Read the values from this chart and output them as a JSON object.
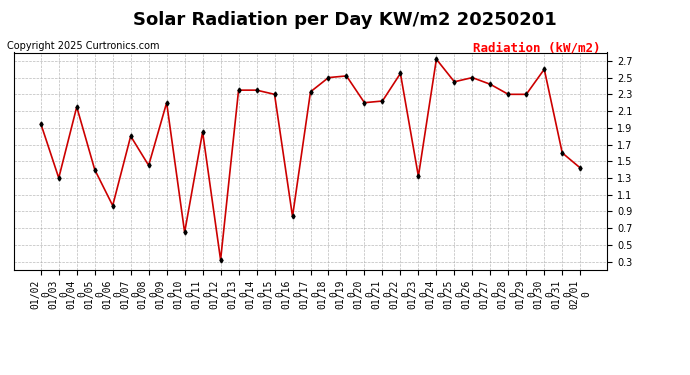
{
  "title": "Solar Radiation per Day KW/m2 20250201",
  "copyright": "Copyright 2025 Curtronics.com",
  "legend_label": "Radiation (kW/m2)",
  "dates": [
    "01/02",
    "01/03",
    "01/04",
    "01/05",
    "01/06",
    "01/07",
    "01/08",
    "01/09",
    "01/10",
    "01/11",
    "01/12",
    "01/13",
    "01/14",
    "01/15",
    "01/16",
    "01/17",
    "01/18",
    "01/19",
    "01/20",
    "01/21",
    "01/22",
    "01/23",
    "01/24",
    "01/25",
    "01/26",
    "01/27",
    "01/28",
    "01/29",
    "01/30",
    "01/31",
    "02/01"
  ],
  "values": [
    1.95,
    1.3,
    2.15,
    1.4,
    0.97,
    1.8,
    1.45,
    2.2,
    0.65,
    1.85,
    0.32,
    2.35,
    2.35,
    2.3,
    0.84,
    2.33,
    2.5,
    2.52,
    2.2,
    2.22,
    2.55,
    1.32,
    2.72,
    2.45,
    2.5,
    2.42,
    2.3,
    2.3,
    2.6,
    1.6,
    1.42
  ],
  "line_color": "#cc0000",
  "marker": "d",
  "marker_color": "black",
  "marker_size": 2.5,
  "line_width": 1.2,
  "background_color": "#ffffff",
  "grid_color": "#aaaaaa",
  "ylim": [
    0.2,
    2.8
  ],
  "yticks": [
    0.3,
    0.5,
    0.7,
    0.9,
    1.1,
    1.3,
    1.5,
    1.7,
    1.9,
    2.1,
    2.3,
    2.5,
    2.7
  ],
  "title_fontsize": 13,
  "tick_fontsize": 7,
  "legend_fontsize": 9,
  "copyright_fontsize": 7
}
